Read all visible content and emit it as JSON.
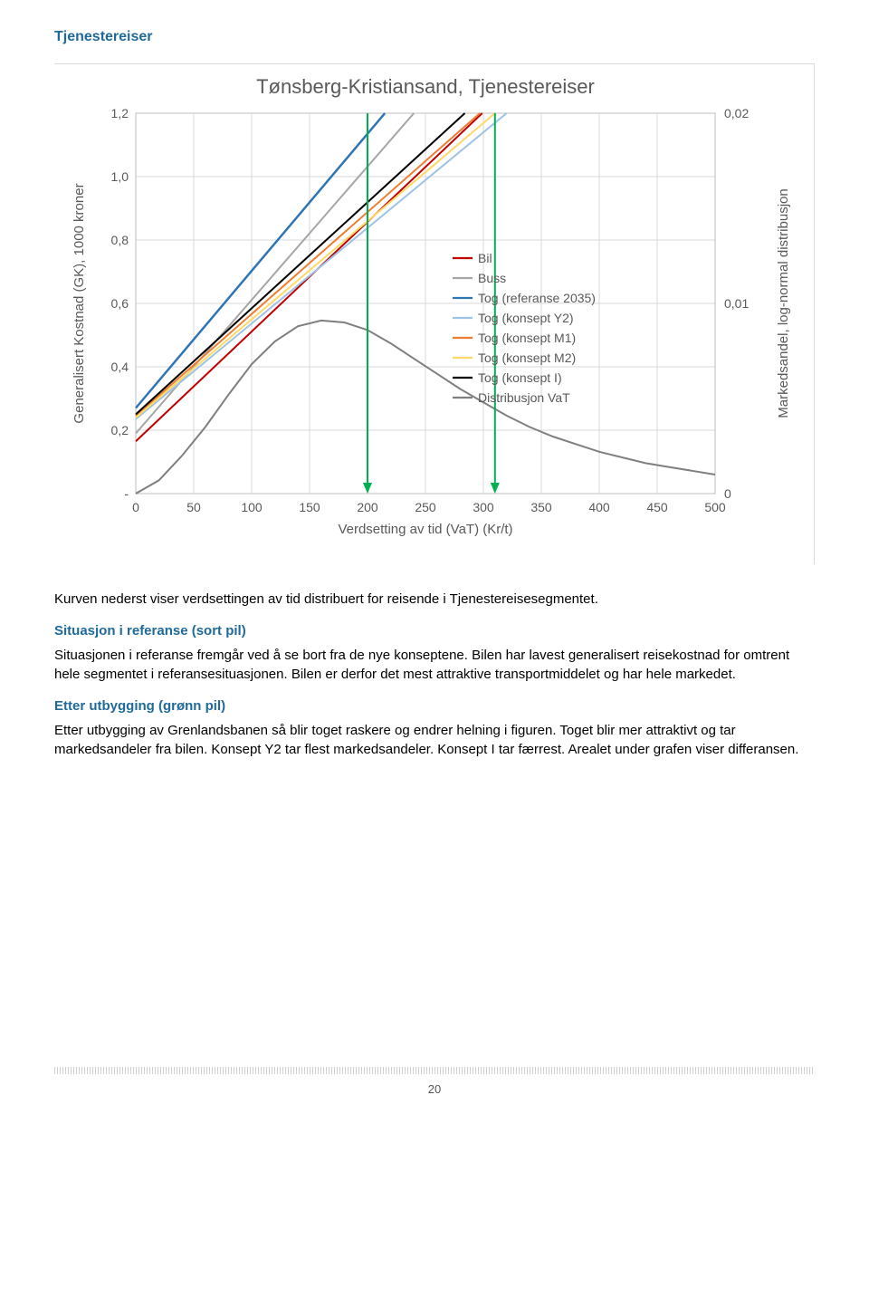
{
  "section_title": "Tjenestereiser",
  "para_intro": "Kurven nederst viser verdsettingen av tid distribuert for reisende i Tjenestereisesegmentet.",
  "h_sit": "Situasjon i referanse (sort pil)",
  "para_sit": "Situasjonen i referanse fremgår ved å se bort fra de nye konseptene. Bilen har lavest generalisert reisekostnad for omtrent hele segmentet i referansesituasjonen. Bilen er derfor det mest attraktive transportmiddelet og har hele markedet.",
  "h_etter": "Etter utbygging (grønn pil)",
  "para_etter": "Etter utbygging av Grenlandsbanen så blir toget raskere og endrer helning i figuren. Toget blir mer attraktivt og tar markedsandeler fra bilen. Konsept Y2 tar flest markedsandeler. Konsept I tar færrest. Arealet under grafen viser differansen.",
  "page_number": "20",
  "chart": {
    "title": "Tønsberg-Kristiansand, Tjenestereiser",
    "xlabel": "Verdsetting av tid (VaT) (Kr/t)",
    "ylabel_left": "Generalisert Kostnad (GK), 1000 kroner",
    "ylabel_right": "Markedsandel, log-normal distribusjon",
    "xlim": [
      0,
      500
    ],
    "xtick_step": 50,
    "xticks": [
      "0",
      "50",
      "100",
      "150",
      "200",
      "250",
      "300",
      "350",
      "400",
      "450",
      "500"
    ],
    "ylim_left": [
      0,
      1.2
    ],
    "ytick_left_step": 0.2,
    "yticks_left": [
      "-",
      "0,2",
      "0,4",
      "0,6",
      "0,8",
      "1,0",
      "1,2"
    ],
    "ylim_right": [
      0,
      0.02
    ],
    "yticks_right": [
      "0",
      "0,01",
      "0,02"
    ],
    "plot_bg": "#ffffff",
    "grid_color": "#d9d9d9",
    "axis_color": "#bfbfbf",
    "distribution_color": "#7f7f7f",
    "distribution_points": [
      [
        0,
        0.0
      ],
      [
        20,
        0.0007
      ],
      [
        40,
        0.002
      ],
      [
        60,
        0.0035
      ],
      [
        80,
        0.0052
      ],
      [
        100,
        0.0068
      ],
      [
        120,
        0.008
      ],
      [
        140,
        0.0088
      ],
      [
        160,
        0.0091
      ],
      [
        180,
        0.009
      ],
      [
        200,
        0.0086
      ],
      [
        220,
        0.0079
      ],
      [
        240,
        0.0071
      ],
      [
        260,
        0.0063
      ],
      [
        280,
        0.0055
      ],
      [
        300,
        0.0048
      ],
      [
        320,
        0.0041
      ],
      [
        340,
        0.0035
      ],
      [
        360,
        0.003
      ],
      [
        380,
        0.0026
      ],
      [
        400,
        0.0022
      ],
      [
        420,
        0.0019
      ],
      [
        440,
        0.0016
      ],
      [
        460,
        0.0014
      ],
      [
        480,
        0.0012
      ],
      [
        500,
        0.001
      ]
    ],
    "arrows": [
      {
        "x": 200,
        "color": "#00b050"
      },
      {
        "x": 310,
        "color": "#00b050"
      }
    ],
    "series": [
      {
        "name": "Bil",
        "color": "#c00000",
        "width": 2.0,
        "p1": [
          0,
          0.165
        ],
        "p2": [
          299,
          1.2
        ]
      },
      {
        "name": "Buss",
        "color": "#a6a6a6",
        "width": 2.0,
        "p1": [
          0,
          0.19
        ],
        "p2": [
          240,
          1.2
        ]
      },
      {
        "name": "Tog (referanse 2035)",
        "color": "#2e75b6",
        "width": 2.5,
        "p1": [
          0,
          0.27
        ],
        "p2": [
          215,
          1.2
        ]
      },
      {
        "name": "Tog (konsept Y2)",
        "color": "#9dc3e6",
        "width": 2.0,
        "p1": [
          0,
          0.235
        ],
        "p2": [
          320,
          1.2
        ]
      },
      {
        "name": "Tog (konsept M1)",
        "color": "#ed7d31",
        "width": 2.0,
        "p1": [
          0,
          0.245
        ],
        "p2": [
          297,
          1.2
        ]
      },
      {
        "name": "Tog (konsept M2)",
        "color": "#ffd966",
        "width": 2.0,
        "p1": [
          0,
          0.24
        ],
        "p2": [
          310,
          1.2
        ]
      },
      {
        "name": "Tog (konsept I)",
        "color": "#000000",
        "width": 2.0,
        "p1": [
          0,
          0.25
        ],
        "p2": [
          284,
          1.2
        ]
      },
      {
        "name": "Distribusjon VaT",
        "color": "#7f7f7f",
        "width": 2.0,
        "is_dist": true
      }
    ]
  }
}
